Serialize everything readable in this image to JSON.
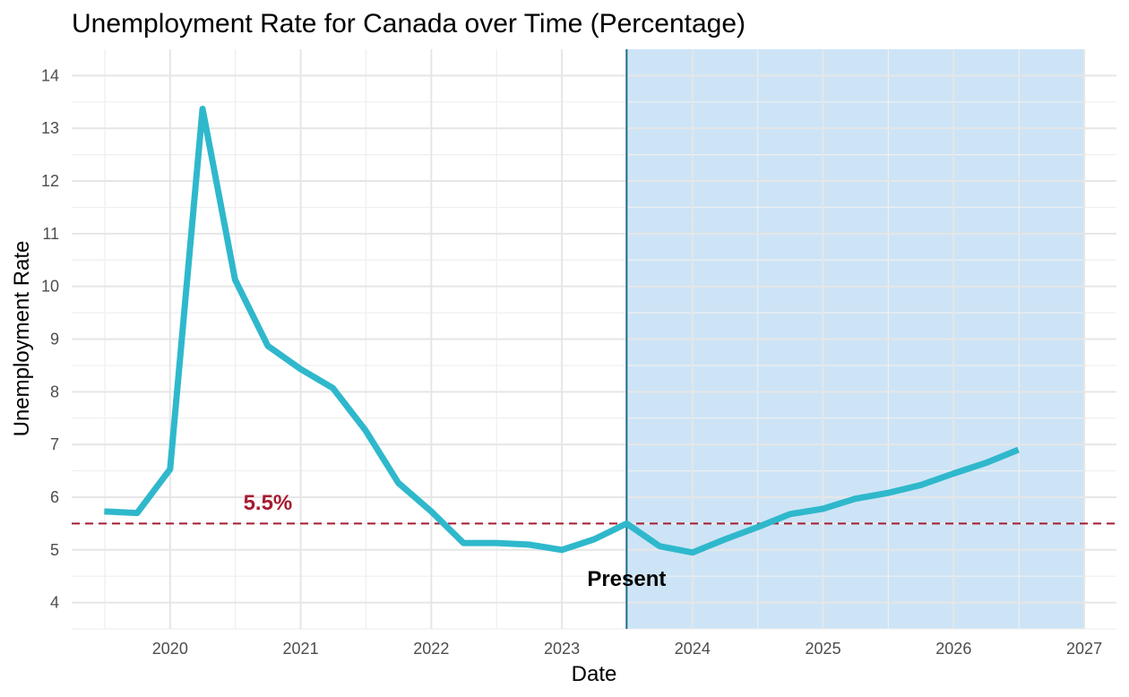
{
  "chart_data": {
    "type": "line",
    "title": "Unemployment Rate for Canada over Time (Percentage)",
    "xlabel": "Date",
    "ylabel": "Unemployment Rate",
    "x_axis_type": "date",
    "xlim": [
      "2019-04-01",
      "2027-04-01"
    ],
    "ylim": [
      3.5,
      14.5
    ],
    "x_ticks": [
      "2020",
      "2021",
      "2022",
      "2023",
      "2024",
      "2025",
      "2026",
      "2027"
    ],
    "y_ticks": [
      4,
      5,
      6,
      7,
      8,
      9,
      10,
      11,
      12,
      13,
      14
    ],
    "grid": true,
    "legend": "none",
    "series": [
      {
        "color": "#2fb8cc",
        "points": [
          {
            "x": "2019-07-01",
            "y": 5.73
          },
          {
            "x": "2019-10-01",
            "y": 5.7
          },
          {
            "x": "2020-01-01",
            "y": 6.53
          },
          {
            "x": "2020-04-01",
            "y": 13.37
          },
          {
            "x": "2020-07-01",
            "y": 10.13
          },
          {
            "x": "2020-10-01",
            "y": 8.87
          },
          {
            "x": "2021-01-01",
            "y": 8.43
          },
          {
            "x": "2021-04-01",
            "y": 8.07
          },
          {
            "x": "2021-07-01",
            "y": 7.27
          },
          {
            "x": "2021-10-01",
            "y": 6.27
          },
          {
            "x": "2022-01-01",
            "y": 5.73
          },
          {
            "x": "2022-04-01",
            "y": 5.13
          },
          {
            "x": "2022-07-01",
            "y": 5.13
          },
          {
            "x": "2022-10-01",
            "y": 5.1
          },
          {
            "x": "2023-01-01",
            "y": 5.0
          },
          {
            "x": "2023-04-01",
            "y": 5.2
          },
          {
            "x": "2023-07-01",
            "y": 5.5
          },
          {
            "x": "2023-10-01",
            "y": 5.07
          },
          {
            "x": "2024-01-01",
            "y": 4.95
          },
          {
            "x": "2024-04-01",
            "y": 5.2
          },
          {
            "x": "2024-07-01",
            "y": 5.43
          },
          {
            "x": "2024-10-01",
            "y": 5.68
          },
          {
            "x": "2025-01-01",
            "y": 5.78
          },
          {
            "x": "2025-04-01",
            "y": 5.97
          },
          {
            "x": "2025-07-01",
            "y": 6.08
          },
          {
            "x": "2025-10-01",
            "y": 6.23
          },
          {
            "x": "2026-01-01",
            "y": 6.45
          },
          {
            "x": "2026-04-01",
            "y": 6.65
          },
          {
            "x": "2026-07-01",
            "y": 6.9
          }
        ]
      }
    ],
    "reference_line": {
      "y": 5.5,
      "label": "5.5%",
      "label_x": "2020-10-01",
      "label_y": 5.9,
      "color": "#a51c30",
      "style": "dashed"
    },
    "present_line": {
      "x": "2023-07-01",
      "label": "Present",
      "label_y": 4.45,
      "color": "#1a6b8a"
    },
    "forecast_region": {
      "start": "2023-07-01",
      "end": "2027-01-01",
      "color": "#cde4f6"
    }
  }
}
